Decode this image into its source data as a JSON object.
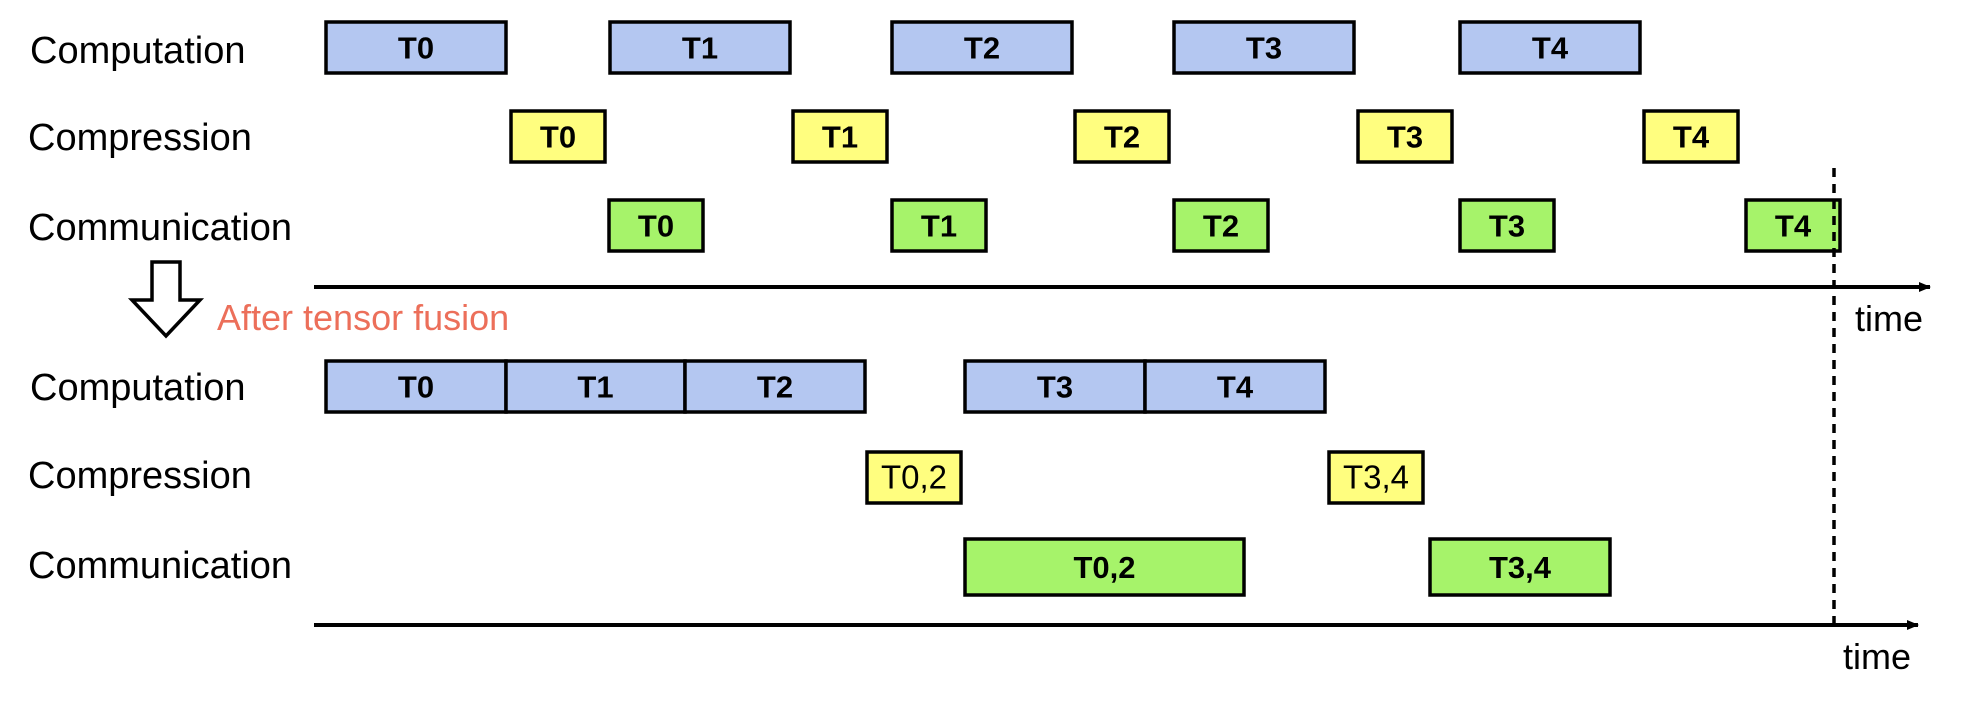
{
  "colors": {
    "computation": "#b4c7f1",
    "compression": "#fffe7f",
    "communication": "#a6f36a",
    "caption": "#ec6f5a",
    "stroke": "#000000"
  },
  "top": {
    "labels": {
      "computation": "Computation",
      "compression": "Compression",
      "communication": "Communication"
    },
    "computation": [
      "T0",
      "T1",
      "T2",
      "T3",
      "T4"
    ],
    "compression": [
      "T0",
      "T1",
      "T2",
      "T3",
      "T4"
    ],
    "communication": [
      "T0",
      "T1",
      "T2",
      "T3",
      "T4"
    ],
    "time_label": "time"
  },
  "transition": {
    "icon": "down-arrow-icon",
    "caption": "After tensor fusion"
  },
  "bottom": {
    "labels": {
      "computation": "Computation",
      "compression": "Compression",
      "communication": "Communication"
    },
    "computation": [
      "T0",
      "T1",
      "T2",
      "T3",
      "T4"
    ],
    "compression": [
      "T0,2",
      "T3,4"
    ],
    "communication": [
      "T0,2",
      "T3,4"
    ],
    "time_label": "time"
  }
}
